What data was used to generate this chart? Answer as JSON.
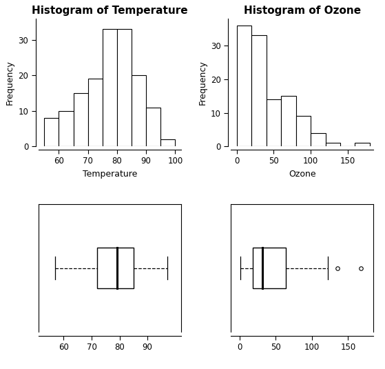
{
  "temp_hist_bins": [
    55,
    60,
    65,
    70,
    75,
    80,
    85,
    90,
    95,
    100
  ],
  "temp_hist_counts": [
    8,
    10,
    15,
    19,
    33,
    33,
    20,
    11,
    2
  ],
  "temp_xlim": [
    53,
    102
  ],
  "temp_xticks": [
    60,
    70,
    80,
    90,
    100
  ],
  "temp_ylim": [
    0,
    36
  ],
  "temp_yticks": [
    0,
    10,
    20,
    30
  ],
  "temp_xlabel": "Temperature",
  "temp_title": "Histogram of Temperature",
  "ozone_hist_bins": [
    0,
    20,
    40,
    60,
    80,
    100,
    120,
    140,
    160,
    180
  ],
  "ozone_hist_counts": [
    36,
    33,
    14,
    15,
    9,
    4,
    1,
    0,
    1
  ],
  "ozone_xlim": [
    -8,
    185
  ],
  "ozone_xticks": [
    0,
    50,
    100,
    150
  ],
  "ozone_ylim": [
    0,
    38
  ],
  "ozone_yticks": [
    0,
    10,
    20,
    30
  ],
  "ozone_xlabel": "Ozone",
  "ozone_title": "Histogram of Ozone",
  "temp_box": {
    "median": 79,
    "q1": 72,
    "q3": 85,
    "whisker_low": 57,
    "whisker_high": 97,
    "outliers": [],
    "xlim": [
      51,
      102
    ],
    "xticks": [
      60,
      70,
      80,
      90
    ]
  },
  "ozone_box": {
    "median": 31.5,
    "q1": 18,
    "q3": 63.5,
    "whisker_low": 1,
    "whisker_high": 122,
    "outliers": [
      135,
      168
    ],
    "xlim": [
      -12,
      185
    ],
    "xticks": [
      0,
      50,
      100,
      150
    ]
  },
  "bg_color": "#ffffff",
  "bar_facecolor": "white",
  "bar_edgecolor": "black",
  "title_fontsize": 11,
  "label_fontsize": 9,
  "tick_fontsize": 8.5,
  "ylabel": "Frequency"
}
